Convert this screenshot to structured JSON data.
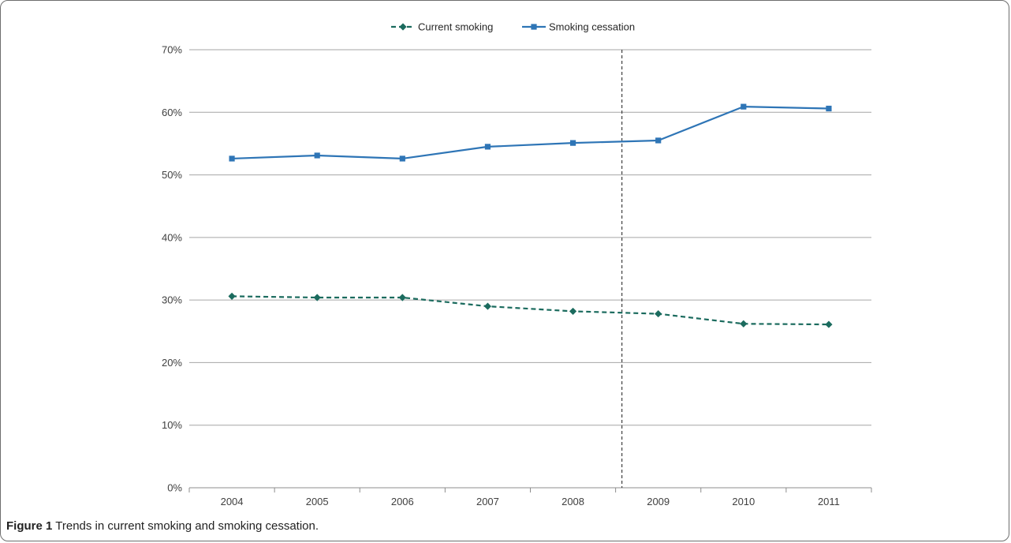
{
  "chart_data": {
    "type": "line",
    "categories": [
      "2004",
      "2005",
      "2006",
      "2007",
      "2008",
      "2009",
      "2010",
      "2011"
    ],
    "ylim": [
      0,
      70
    ],
    "yticks": [
      "0%",
      "10%",
      "20%",
      "30%",
      "40%",
      "50%",
      "60%",
      "70%"
    ],
    "grid": "horizontal",
    "legend_position": "top-center",
    "series": [
      {
        "name": "Current smoking",
        "values": [
          30.6,
          30.4,
          30.4,
          29.0,
          28.2,
          27.8,
          26.2,
          26.1
        ],
        "color": "#1b6b5e",
        "line_style": "dashed",
        "marker": "diamond"
      },
      {
        "name": "Smoking cessation",
        "values": [
          52.6,
          53.1,
          52.6,
          54.5,
          55.1,
          55.5,
          60.9,
          60.6
        ],
        "color": "#2e75b6",
        "line_style": "solid",
        "marker": "square"
      }
    ],
    "reference_line": {
      "position_between": [
        "2008",
        "2009"
      ],
      "style": "dashed",
      "color": "#404040"
    }
  },
  "caption": {
    "label": "Figure 1",
    "text": "Trends in current smoking and smoking cessation."
  }
}
